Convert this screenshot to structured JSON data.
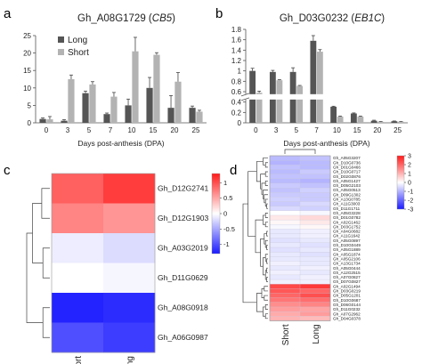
{
  "chart_data": [
    {
      "panel": "a",
      "type": "bar",
      "title_gene": "Gh_A08G1729",
      "title_symbol": "CB5",
      "xlabel": "Days post-anthesis (DPA)",
      "ylabel": "",
      "ylim": [
        0,
        25
      ],
      "yticks": [
        "0",
        "5",
        "10",
        "15",
        "20",
        "25"
      ],
      "categories": [
        "0",
        "3",
        "5",
        "7",
        "10",
        "15",
        "20",
        "25"
      ],
      "series": [
        {
          "name": "Long",
          "color": "#555555",
          "values": [
            1.1,
            0.6,
            8.5,
            2.5,
            5.0,
            10.0,
            4.3,
            4.3
          ],
          "errors": [
            0.3,
            0.3,
            0.6,
            0.3,
            1.8,
            3.0,
            3.5,
            0.5
          ]
        },
        {
          "name": "Short",
          "color": "#b3b3b3",
          "values": [
            1.0,
            12.5,
            11.0,
            7.5,
            20.5,
            19.5,
            11.8,
            3.2
          ],
          "errors": [
            0.8,
            1.2,
            0.8,
            1.2,
            4.0,
            0.6,
            2.6,
            0.4
          ]
        }
      ],
      "legend_position": "top-left"
    },
    {
      "panel": "b",
      "type": "bar",
      "title_gene": "Gh_D03G0232",
      "title_symbol": "EB1C",
      "xlabel": "Days post-anthesis (DPA)",
      "ylabel": "",
      "ylim": [
        0,
        1.8
      ],
      "yticks": [
        "0",
        "0.2",
        "0.4",
        "0.6",
        "0.8",
        "1",
        "1.2",
        "1.4",
        "1.6",
        "1.8"
      ],
      "axis_break_between": [
        0.4,
        0.6
      ],
      "categories": [
        "0",
        "3",
        "5",
        "7",
        "10",
        "15",
        "20",
        "25"
      ],
      "series": [
        {
          "name": "Long",
          "color": "#555555",
          "values": [
            1.0,
            0.98,
            0.98,
            1.58,
            0.31,
            0.18,
            0.04,
            0.03
          ],
          "errors": [
            0.05,
            0.03,
            0.08,
            0.1,
            0.01,
            0.01,
            0.01,
            0.005
          ]
        },
        {
          "name": "Short",
          "color": "#b3b3b3",
          "values": [
            0.58,
            0.82,
            0.71,
            1.37,
            0.12,
            0.12,
            0.02,
            0.02
          ],
          "errors": [
            0.03,
            0.01,
            0.01,
            0.04,
            0.01,
            0.01,
            0.005,
            0.005
          ]
        }
      ]
    },
    {
      "panel": "c",
      "type": "heatmap",
      "columns": [
        "Short",
        "Long"
      ],
      "rows": [
        "Gh_D12G2741",
        "Gh_D12G1903",
        "Gh_A03G2019",
        "Gh_D11G0629",
        "Gh_A08G0918",
        "Gh_A06G0987"
      ],
      "values": [
        [
          0.9,
          1.1
        ],
        [
          0.7,
          0.6
        ],
        [
          -0.1,
          -0.2
        ],
        [
          0.0,
          -0.05
        ],
        [
          -1.25,
          -1.2
        ],
        [
          -1.0,
          -1.1
        ]
      ],
      "colorbar_ticks": [
        "1",
        "0.5",
        "0",
        "-0.5",
        "-1"
      ],
      "colorbar_range": [
        -1.3,
        1.3
      ],
      "colors": {
        "low": "#1a1aff",
        "mid": "#ffffff",
        "high": "#ff1a1a"
      }
    },
    {
      "panel": "d",
      "type": "heatmap",
      "columns": [
        "Short",
        "Long"
      ],
      "rows": [
        "Gh_A05G3207",
        "Gh_D10G0736",
        "Gh_D01G0466",
        "Gh_D10G0717",
        "Gh_D02G0876",
        "Gh_A05G1427",
        "Gh_D05G2103",
        "Gh_A05G0513",
        "Gh_D09G1302",
        "Gh_A13G0785",
        "Gh_A11G3003",
        "Gh_D11G1711",
        "Gh_A05G3228",
        "Gh_D01G0782",
        "Gh_A02G1462",
        "Gh_D03G1752",
        "Gh_A04G0682",
        "Gh_A11G1642",
        "Gh_A05G0897",
        "Gh_D10G0449",
        "Gh_A05G1889",
        "Gh_A05G1874",
        "Gh_A05G2106",
        "Gh_A13G1734",
        "Gh_A05G0444",
        "Gh_A12G2515",
        "Gh_A07G0827",
        "Gh_D07G0827",
        "Gh_A02G1494",
        "Gh_D03G0219",
        "Gh_D05G1201",
        "Gh_D10G0687",
        "Gh_D06G0144",
        "Gh_D11G0232",
        "Gh_A07G2962",
        "Gh_D04G0378"
      ],
      "values": [
        [
          -0.9,
          -0.8
        ],
        [
          -1.0,
          -0.9
        ],
        [
          -0.8,
          -0.9
        ],
        [
          -0.9,
          -0.7
        ],
        [
          -0.8,
          -0.8
        ],
        [
          -0.9,
          -1.0
        ],
        [
          -0.7,
          -0.8
        ],
        [
          -0.8,
          -0.6
        ],
        [
          -0.7,
          -0.7
        ],
        [
          -0.6,
          -0.7
        ],
        [
          -0.7,
          -0.5
        ],
        [
          -0.5,
          -0.6
        ],
        [
          0.0,
          -0.1
        ],
        [
          0.3,
          0.5
        ],
        [
          0.1,
          0.3
        ],
        [
          -0.1,
          0.1
        ],
        [
          -0.3,
          -0.2
        ],
        [
          -0.3,
          -0.2
        ],
        [
          -0.4,
          -0.3
        ],
        [
          -0.3,
          -0.4
        ],
        [
          -0.4,
          -0.3
        ],
        [
          -0.3,
          -0.4
        ],
        [
          -0.3,
          -0.3
        ],
        [
          -0.2,
          -0.3
        ],
        [
          -0.3,
          -0.2
        ],
        [
          -0.2,
          -0.3
        ],
        [
          -0.3,
          -0.2
        ],
        [
          -0.2,
          -0.2
        ],
        [
          2.4,
          2.6
        ],
        [
          2.2,
          2.0
        ],
        [
          2.0,
          2.3
        ],
        [
          1.8,
          1.9
        ],
        [
          1.5,
          1.6
        ],
        [
          1.3,
          1.2
        ],
        [
          1.1,
          1.3
        ],
        [
          1.0,
          0.9
        ]
      ],
      "colorbar_ticks": [
        "3",
        "2",
        "1",
        "0",
        "-1",
        "-2",
        "-3"
      ],
      "colorbar_range": [
        -3,
        3
      ],
      "colors": {
        "low": "#1a1aff",
        "mid": "#ffffff",
        "high": "#ff1a1a"
      }
    }
  ],
  "panel_labels": {
    "a": "a",
    "b": "b",
    "c": "c",
    "d": "d"
  }
}
